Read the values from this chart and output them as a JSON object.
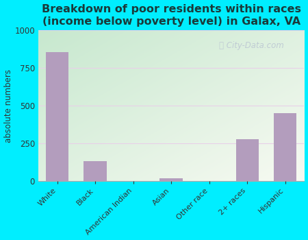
{
  "title": "Breakdown of poor residents within races\n(income below poverty level) in Galax, VA",
  "categories": [
    "White",
    "Black",
    "American Indian",
    "Asian",
    "Other race",
    "2+ races",
    "Hispanic"
  ],
  "values": [
    855,
    130,
    0,
    18,
    0,
    275,
    450
  ],
  "bar_color": "#b39dbd",
  "ylabel": "absolute numbers",
  "ylim": [
    0,
    1000
  ],
  "yticks": [
    0,
    250,
    500,
    750,
    1000
  ],
  "bg_outer": "#00eeff",
  "grid_color": "#e8d0e8",
  "title_fontsize": 11.5,
  "title_color": "#1a3a3a",
  "axis_label_fontsize": 8.5,
  "watermark_color": "#c0ccd4",
  "bg_grad_top": "#f8fbf6",
  "bg_grad_bottom": "#cde8ce"
}
